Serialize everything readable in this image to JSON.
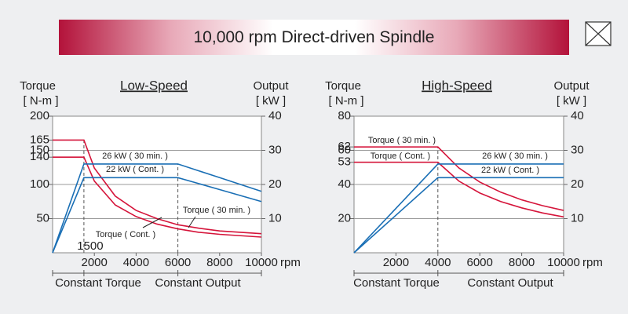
{
  "header": {
    "title": "10,000 rpm Direct-driven Spindle"
  },
  "chart_data": [
    {
      "type": "line",
      "title": "Low-Speed",
      "y_label": "Torque",
      "y_unit": "[ N-m ]",
      "y2_label": "Output",
      "y2_unit": "[ kW ]",
      "x_unit": "rpm",
      "x": [
        0,
        1500,
        2000,
        3000,
        4000,
        5000,
        6000,
        7000,
        8000,
        9000,
        10000
      ],
      "xlim": [
        0,
        10000
      ],
      "xticks": [
        2000,
        4000,
        6000,
        8000,
        10000
      ],
      "ylim": [
        0,
        200
      ],
      "yticks": [
        50,
        100,
        140,
        150,
        165,
        200
      ],
      "y2lim": [
        0,
        40
      ],
      "y2ticks": [
        10,
        20,
        30,
        40
      ],
      "base_speed": 1500,
      "show_base_speed": true,
      "corner_speed": 6000,
      "regions": [
        "Constant Torque",
        "Constant Output"
      ],
      "grid": true,
      "series": [
        {
          "name": "Torque ( 30 min. )",
          "color": "#d5143a",
          "values": [
            165,
            165,
            124,
            83,
            62,
            50,
            41,
            36,
            32,
            30,
            28
          ]
        },
        {
          "name": "Torque ( Cont. )",
          "color": "#d5143a",
          "values": [
            140,
            140,
            105,
            70,
            53,
            42,
            35,
            30,
            27,
            25,
            23
          ]
        },
        {
          "name": "26 kW ( 30 min. )",
          "color": "#1a6fb5",
          "axis": "y2",
          "values": [
            0,
            26,
            26,
            26,
            26,
            26,
            26,
            24,
            22,
            20,
            18
          ]
        },
        {
          "name": "22 kW ( Cont. )",
          "color": "#1a6fb5",
          "axis": "y2",
          "values": [
            0,
            22,
            22,
            22,
            22,
            22,
            22,
            20.25,
            18.5,
            16.75,
            15
          ]
        }
      ]
    },
    {
      "type": "line",
      "title": "High-Speed",
      "y_label": "Torque",
      "y_unit": "[ N-m ]",
      "y2_label": "Output",
      "y2_unit": "[ kW ]",
      "x_unit": "rpm",
      "x": [
        0,
        4000,
        5000,
        6000,
        7000,
        8000,
        9000,
        10000
      ],
      "xlim": [
        0,
        10000
      ],
      "xticks": [
        2000,
        4000,
        6000,
        8000,
        10000
      ],
      "ylim": [
        0,
        80
      ],
      "yticks": [
        20,
        40,
        53,
        60,
        62,
        80
      ],
      "y2lim": [
        0,
        40
      ],
      "y2ticks": [
        10,
        20,
        30,
        40
      ],
      "base_speed": 4000,
      "show_base_speed": false,
      "regions": [
        "Constant Torque",
        "Constant Output"
      ],
      "grid": true,
      "series": [
        {
          "name": "Torque ( 30 min. )",
          "color": "#d5143a",
          "values": [
            62,
            62,
            49.7,
            41.4,
            35.5,
            31,
            27.6,
            24.8
          ]
        },
        {
          "name": "Torque ( Cont. )",
          "color": "#d5143a",
          "values": [
            53,
            53,
            42,
            35,
            30,
            26.3,
            23.3,
            21
          ]
        },
        {
          "name": "26 kW ( 30 min. )",
          "color": "#1a6fb5",
          "axis": "y2",
          "values": [
            0,
            26,
            26,
            26,
            26,
            26,
            26,
            26
          ]
        },
        {
          "name": "22 kW ( Cont. )",
          "color": "#1a6fb5",
          "axis": "y2",
          "values": [
            0,
            22,
            22,
            22,
            22,
            22,
            22,
            22
          ]
        }
      ]
    }
  ]
}
